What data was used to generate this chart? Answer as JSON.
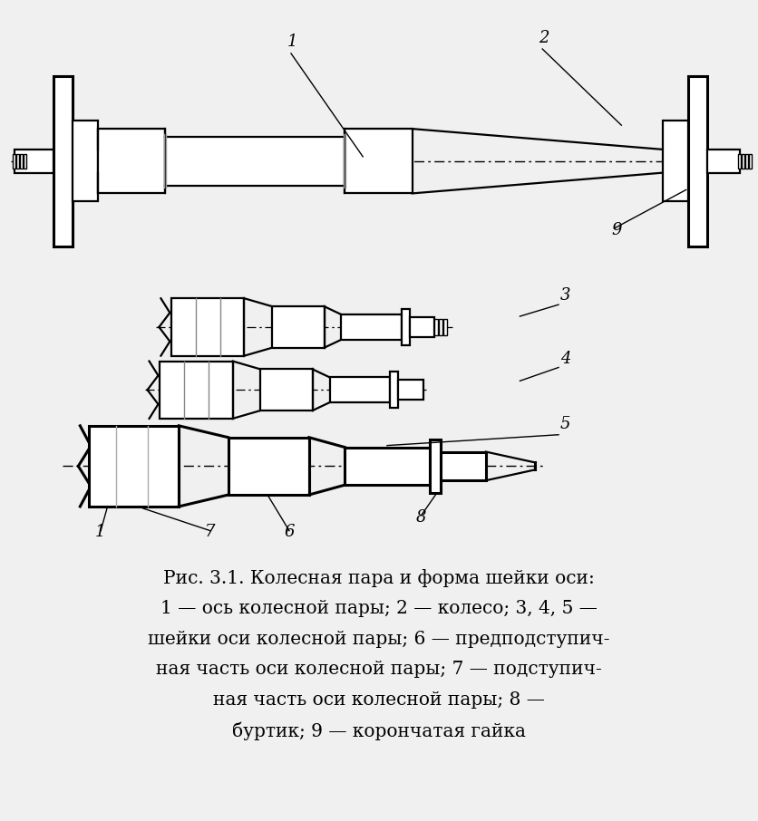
{
  "bg_color": "#f0f0f0",
  "line_color": "#000000",
  "title_line1": "Рис. 3.1. Колесная пара и форма шейки оси:",
  "title_line2": "1 — ось колесной пары; 2 — колесо; 3, 4, 5 —",
  "title_line3": "шейки оси колесной пары; 6 — предподступич-",
  "title_line4": "ная часть оси колесной пары; 7 — подступич-",
  "title_line5": "ная часть оси колесной пары; 8 —",
  "title_line6": "буртик; 9 — корончатая гайка",
  "fig_width": 8.36,
  "fig_height": 9.06,
  "dpi": 100
}
